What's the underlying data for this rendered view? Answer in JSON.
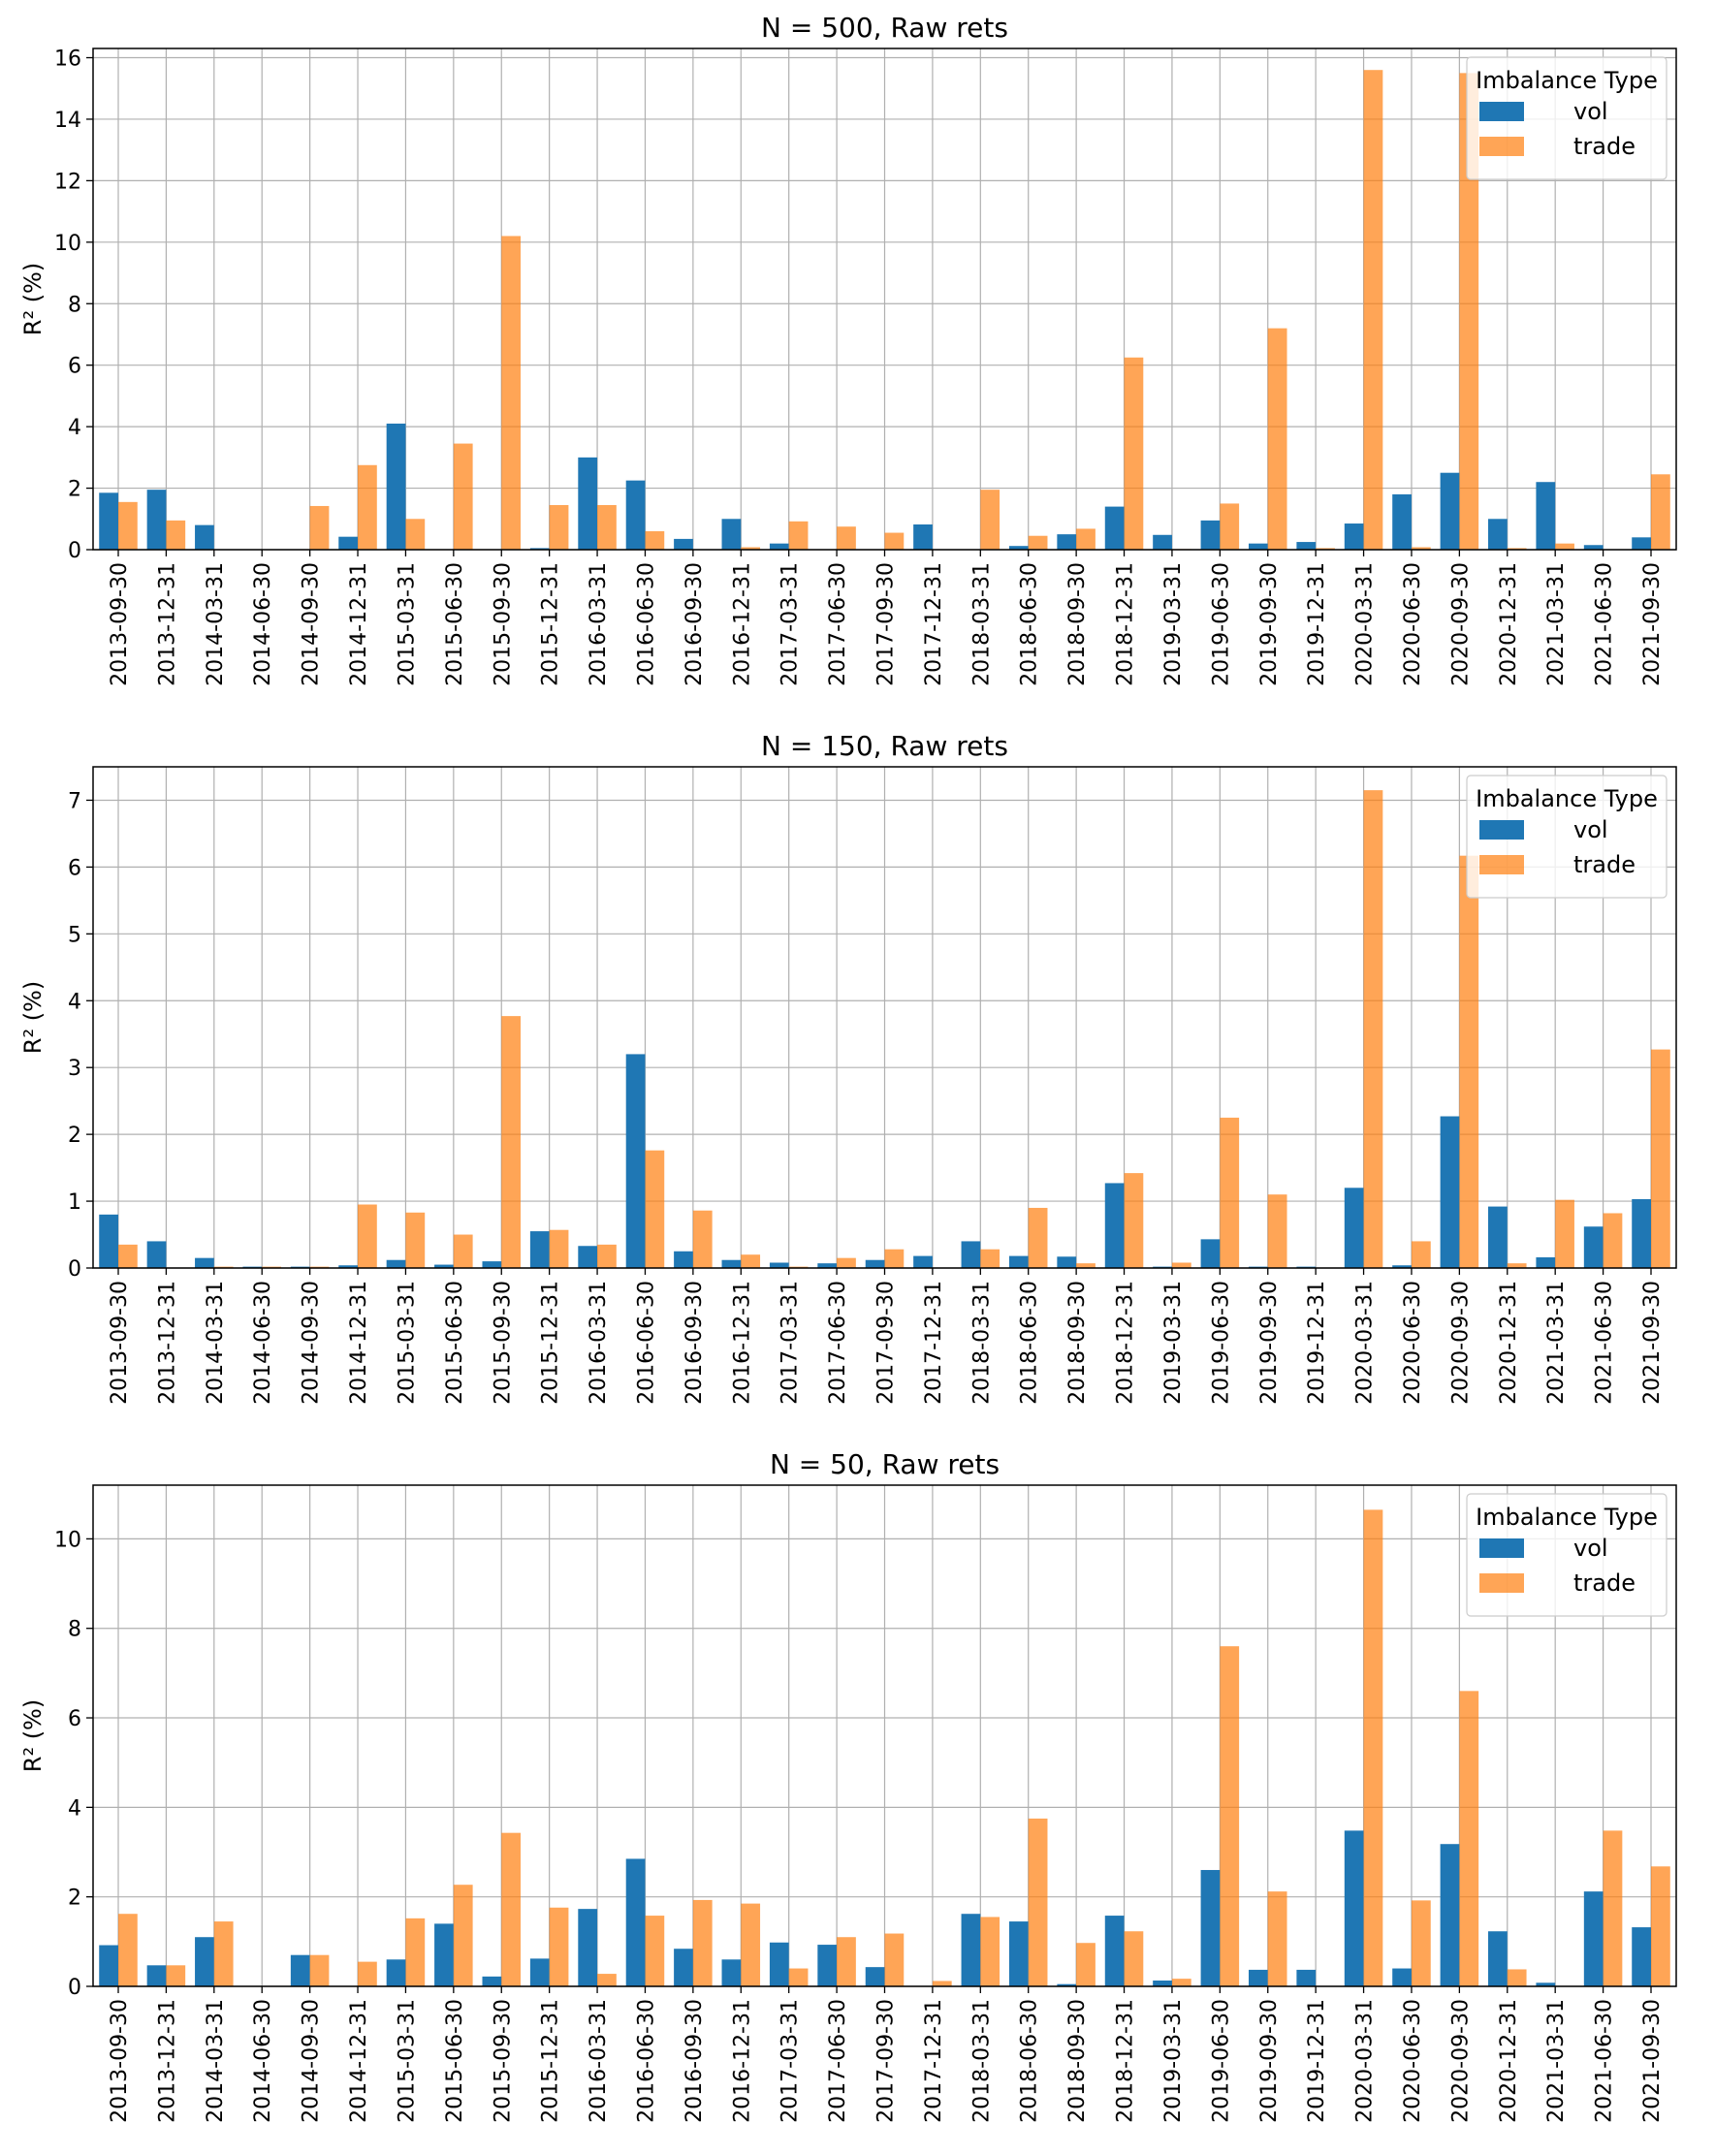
{
  "colors": {
    "vol": "#1f77b4",
    "trade": "#ff7f0e",
    "grid": "#b0b0b0"
  },
  "chart_data": [
    {
      "type": "bar",
      "title": "N = 500, Raw rets",
      "ylabel": "R² (%)",
      "ylim": [
        0,
        16.3
      ],
      "yticks": [
        0,
        2,
        4,
        6,
        8,
        10,
        12,
        14,
        16
      ],
      "grid": true,
      "legend": {
        "title": "Imbalance Type",
        "placement": "top-right"
      },
      "categories": [
        "2013-09-30",
        "2013-12-31",
        "2014-03-31",
        "2014-06-30",
        "2014-09-30",
        "2014-12-31",
        "2015-03-31",
        "2015-06-30",
        "2015-09-30",
        "2015-12-31",
        "2016-03-31",
        "2016-06-30",
        "2016-09-30",
        "2016-12-31",
        "2017-03-31",
        "2017-06-30",
        "2017-09-30",
        "2017-12-31",
        "2018-03-31",
        "2018-06-30",
        "2018-09-30",
        "2018-12-31",
        "2019-03-31",
        "2019-06-30",
        "2019-09-30",
        "2019-12-31",
        "2020-03-31",
        "2020-06-30",
        "2020-09-30",
        "2020-12-31",
        "2021-03-31",
        "2021-06-30",
        "2021-09-30"
      ],
      "series": [
        {
          "name": "vol",
          "values": [
            1.85,
            1.95,
            0.8,
            0,
            0,
            0.42,
            4.1,
            0,
            0,
            0.05,
            3.0,
            2.25,
            0.35,
            1.0,
            0.2,
            0,
            0,
            0.82,
            0,
            0.12,
            0.5,
            1.4,
            0.48,
            0.95,
            0.2,
            0.25,
            0.85,
            1.8,
            2.5,
            1.0,
            2.2,
            0.15,
            0.4
          ]
        },
        {
          "name": "trade",
          "values": [
            1.55,
            0.95,
            0,
            0,
            1.42,
            2.75,
            1.0,
            3.45,
            10.2,
            1.45,
            1.45,
            0.6,
            0,
            0.08,
            0.92,
            0.75,
            0.55,
            0,
            1.95,
            0.45,
            0.68,
            6.25,
            0.02,
            1.5,
            7.2,
            0.05,
            15.6,
            0.08,
            15.5,
            0.05,
            0.2,
            0,
            2.45
          ]
        }
      ]
    },
    {
      "type": "bar",
      "title": "N = 150, Raw rets",
      "ylabel": "R² (%)",
      "ylim": [
        0,
        7.5
      ],
      "yticks": [
        0,
        1,
        2,
        3,
        4,
        5,
        6,
        7
      ],
      "grid": true,
      "legend": {
        "title": "Imbalance Type",
        "placement": "top-right"
      },
      "categories": [
        "2013-09-30",
        "2013-12-31",
        "2014-03-31",
        "2014-06-30",
        "2014-09-30",
        "2014-12-31",
        "2015-03-31",
        "2015-06-30",
        "2015-09-30",
        "2015-12-31",
        "2016-03-31",
        "2016-06-30",
        "2016-09-30",
        "2016-12-31",
        "2017-03-31",
        "2017-06-30",
        "2017-09-30",
        "2017-12-31",
        "2018-03-31",
        "2018-06-30",
        "2018-09-30",
        "2018-12-31",
        "2019-03-31",
        "2019-06-30",
        "2019-09-30",
        "2019-12-31",
        "2020-03-31",
        "2020-06-30",
        "2020-09-30",
        "2020-12-31",
        "2021-03-31",
        "2021-06-30",
        "2021-09-30"
      ],
      "series": [
        {
          "name": "vol",
          "values": [
            0.8,
            0.4,
            0.15,
            0.02,
            0.02,
            0.04,
            0.12,
            0.05,
            0.1,
            0.55,
            0.33,
            3.2,
            0.25,
            0.12,
            0.08,
            0.07,
            0.12,
            0.18,
            0.4,
            0.18,
            0.17,
            1.27,
            0.02,
            0.43,
            0.02,
            0.02,
            1.2,
            0.04,
            2.27,
            0.92,
            0.16,
            0.62,
            1.03
          ]
        },
        {
          "name": "trade",
          "values": [
            0.35,
            0,
            0.02,
            0.02,
            0.02,
            0.95,
            0.83,
            0.5,
            3.77,
            0.57,
            0.35,
            1.76,
            0.86,
            0.2,
            0.02,
            0.15,
            0.28,
            0,
            0.28,
            0.9,
            0.07,
            1.42,
            0.08,
            2.25,
            1.1,
            0,
            7.15,
            0.4,
            6.17,
            0.07,
            1.02,
            0.82,
            3.27
          ]
        }
      ]
    },
    {
      "type": "bar",
      "title": "N = 50, Raw rets",
      "ylabel": "R² (%)",
      "ylim": [
        0,
        11.2
      ],
      "yticks": [
        0,
        2,
        4,
        6,
        8,
        10
      ],
      "grid": true,
      "legend": {
        "title": "Imbalance Type",
        "placement": "top-right"
      },
      "categories": [
        "2013-09-30",
        "2013-12-31",
        "2014-03-31",
        "2014-06-30",
        "2014-09-30",
        "2014-12-31",
        "2015-03-31",
        "2015-06-30",
        "2015-09-30",
        "2015-12-31",
        "2016-03-31",
        "2016-06-30",
        "2016-09-30",
        "2016-12-31",
        "2017-03-31",
        "2017-06-30",
        "2017-09-30",
        "2017-12-31",
        "2018-03-31",
        "2018-06-30",
        "2018-09-30",
        "2018-12-31",
        "2019-03-31",
        "2019-06-30",
        "2019-09-30",
        "2019-12-31",
        "2020-03-31",
        "2020-06-30",
        "2020-09-30",
        "2020-12-31",
        "2021-03-31",
        "2021-06-30",
        "2021-09-30"
      ],
      "series": [
        {
          "name": "vol",
          "values": [
            0.92,
            0.47,
            1.1,
            0,
            0.7,
            0,
            0.6,
            1.4,
            0.22,
            0.62,
            1.73,
            2.85,
            0.84,
            0.6,
            0.98,
            0.93,
            0.43,
            0,
            1.62,
            1.45,
            0.05,
            1.58,
            0.13,
            2.6,
            0.37,
            0.37,
            3.48,
            0.4,
            3.18,
            1.23,
            0.08,
            2.12,
            1.32
          ]
        },
        {
          "name": "trade",
          "values": [
            1.62,
            0.47,
            1.45,
            0,
            0.7,
            0.55,
            1.52,
            2.27,
            3.43,
            1.76,
            0.28,
            1.58,
            1.93,
            1.85,
            0.4,
            1.1,
            1.18,
            0.12,
            1.55,
            3.75,
            0.97,
            1.23,
            0.17,
            7.6,
            2.12,
            0,
            10.65,
            1.92,
            6.6,
            0.38,
            0,
            3.48,
            2.68
          ]
        }
      ]
    }
  ]
}
